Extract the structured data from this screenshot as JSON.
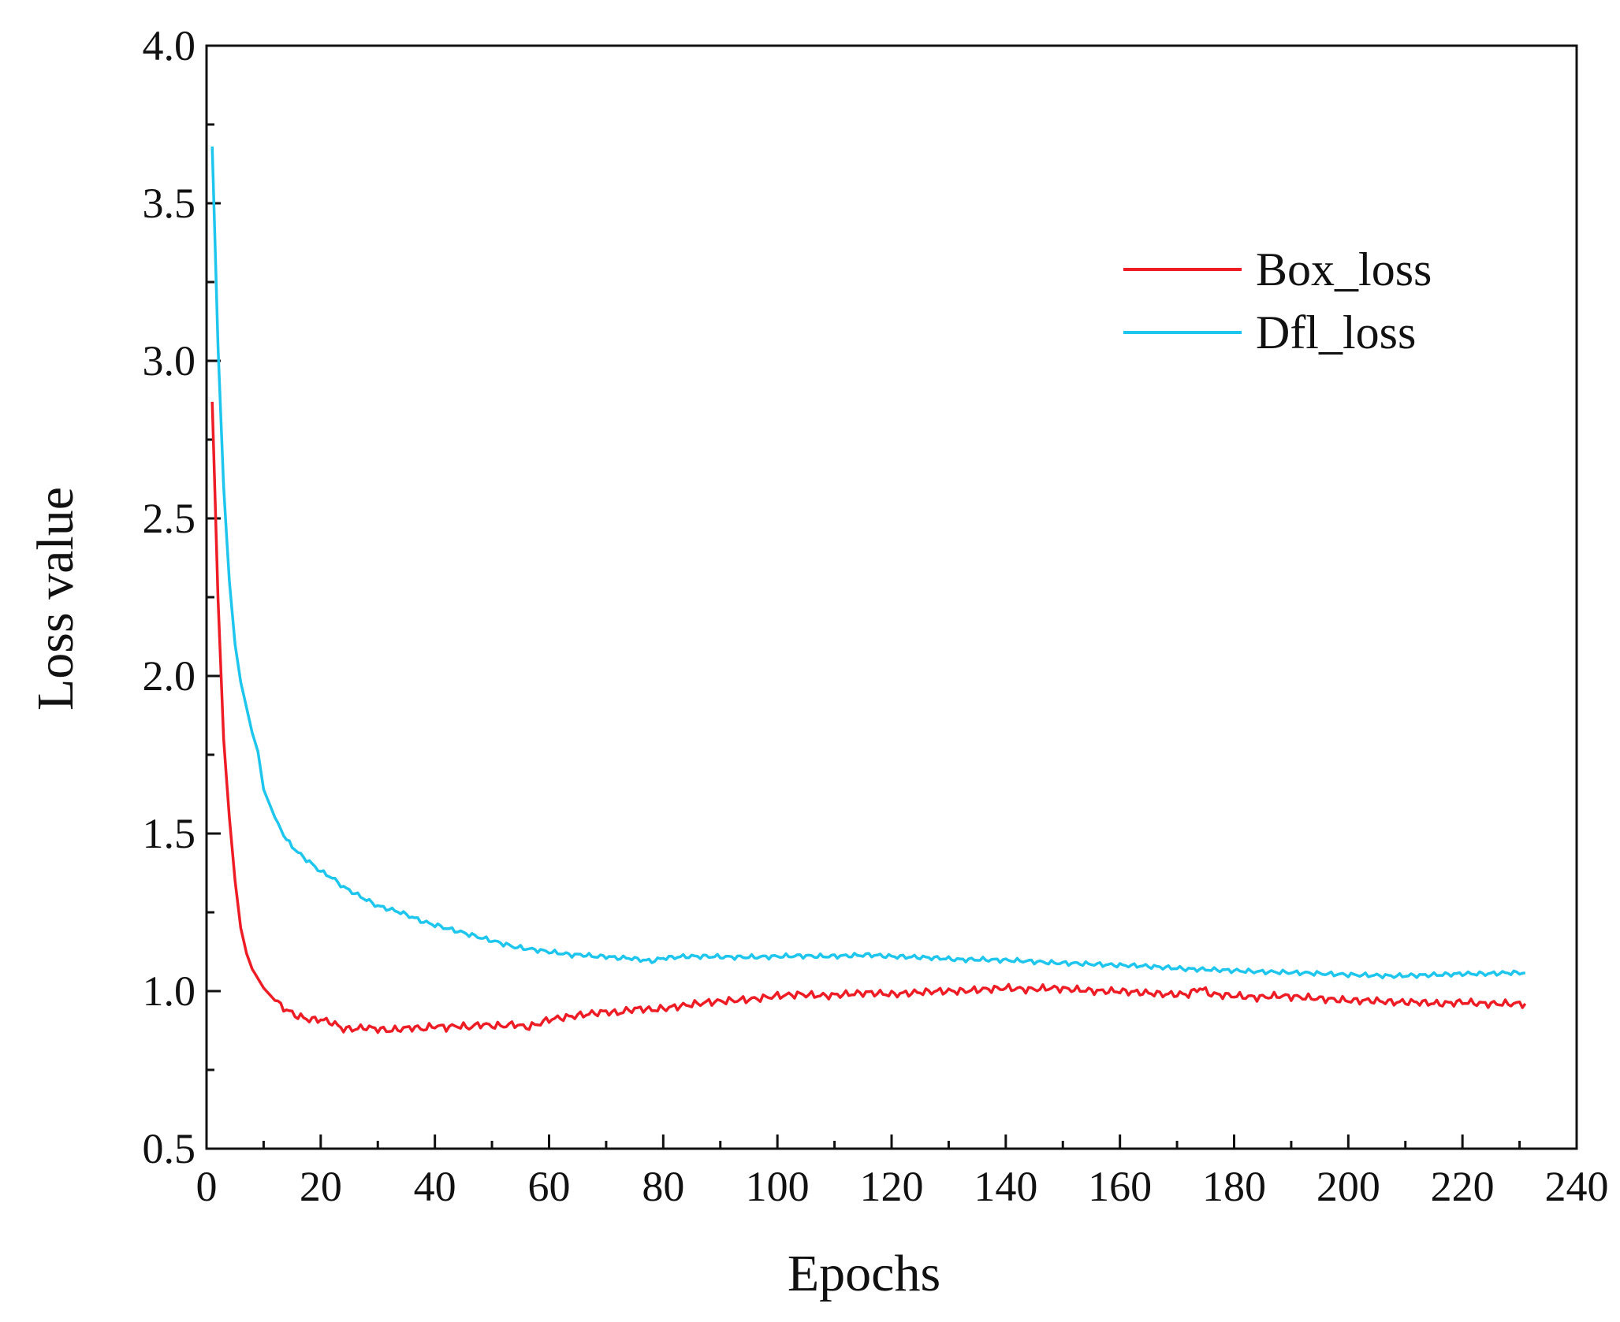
{
  "chart_data": {
    "type": "line",
    "title": "",
    "xlabel": "Epochs",
    "ylabel": "Loss value",
    "xlim": [
      0,
      240
    ],
    "ylim": [
      0.5,
      4.0
    ],
    "xticks": [
      0,
      20,
      40,
      60,
      80,
      100,
      120,
      140,
      160,
      180,
      200,
      220,
      240
    ],
    "xtick_labels": [
      "0",
      "20",
      "40",
      "60",
      "80",
      "100",
      "120",
      "140",
      "160",
      "180",
      "200",
      "220",
      "240"
    ],
    "yticks": [
      0.5,
      1.0,
      1.5,
      2.0,
      2.5,
      3.0,
      3.5,
      4.0
    ],
    "ytick_labels": [
      "0.5",
      "1.0",
      "1.5",
      "2.0",
      "2.5",
      "3.0",
      "3.5",
      "4.0"
    ],
    "grid": false,
    "legend_position": "top-right",
    "series": [
      {
        "name": "Box_loss",
        "color": "#ee1c25",
        "x": [
          1,
          2,
          3,
          4,
          5,
          6,
          7,
          8,
          9,
          10,
          12,
          14,
          16,
          18,
          20,
          22,
          24,
          26,
          28,
          30,
          32,
          34,
          36,
          38,
          40,
          42,
          44,
          46,
          48,
          50,
          52,
          54,
          56,
          58,
          60,
          62,
          64,
          66,
          68,
          70,
          72,
          74,
          76,
          78,
          80,
          84,
          88,
          92,
          96,
          100,
          104,
          108,
          112,
          116,
          120,
          124,
          128,
          132,
          136,
          140,
          144,
          148,
          152,
          156,
          160,
          164,
          168,
          172,
          174,
          176,
          180,
          184,
          188,
          192,
          196,
          200,
          204,
          208,
          212,
          216,
          220,
          224,
          228,
          231
        ],
        "values": [
          2.87,
          2.25,
          1.8,
          1.55,
          1.35,
          1.2,
          1.12,
          1.07,
          1.04,
          1.01,
          0.97,
          0.94,
          0.92,
          0.91,
          0.91,
          0.9,
          0.88,
          0.88,
          0.885,
          0.88,
          0.875,
          0.88,
          0.885,
          0.88,
          0.89,
          0.885,
          0.89,
          0.885,
          0.895,
          0.89,
          0.89,
          0.895,
          0.885,
          0.895,
          0.91,
          0.915,
          0.92,
          0.925,
          0.93,
          0.935,
          0.93,
          0.94,
          0.945,
          0.94,
          0.945,
          0.955,
          0.965,
          0.97,
          0.975,
          0.985,
          0.99,
          0.985,
          0.99,
          0.995,
          0.99,
          0.995,
          1.0,
          1.0,
          1.005,
          1.01,
          1.005,
          1.01,
          1.005,
          1.0,
          1.0,
          0.995,
          0.99,
          0.99,
          1.01,
          0.99,
          0.985,
          0.98,
          0.985,
          0.98,
          0.975,
          0.97,
          0.97,
          0.965,
          0.965,
          0.96,
          0.965,
          0.96,
          0.96,
          0.96
        ]
      },
      {
        "name": "Dfl_loss",
        "color": "#1ec6ee",
        "x": [
          1,
          2,
          3,
          4,
          5,
          6,
          7,
          8,
          9,
          10,
          12,
          14,
          16,
          18,
          20,
          22,
          24,
          26,
          28,
          30,
          34,
          38,
          42,
          46,
          50,
          54,
          58,
          60,
          62,
          64,
          66,
          68,
          70,
          72,
          74,
          76,
          78,
          80,
          84,
          88,
          92,
          96,
          100,
          104,
          108,
          112,
          116,
          120,
          124,
          128,
          132,
          136,
          140,
          144,
          148,
          152,
          156,
          160,
          164,
          168,
          172,
          176,
          180,
          184,
          188,
          192,
          196,
          200,
          204,
          208,
          212,
          216,
          220,
          224,
          228,
          231
        ],
        "values": [
          3.68,
          3.05,
          2.6,
          2.3,
          2.1,
          1.98,
          1.9,
          1.82,
          1.76,
          1.64,
          1.55,
          1.48,
          1.44,
          1.41,
          1.38,
          1.36,
          1.33,
          1.31,
          1.29,
          1.27,
          1.25,
          1.22,
          1.2,
          1.18,
          1.16,
          1.14,
          1.13,
          1.125,
          1.12,
          1.115,
          1.115,
          1.11,
          1.11,
          1.105,
          1.105,
          1.1,
          1.095,
          1.105,
          1.11,
          1.11,
          1.108,
          1.108,
          1.11,
          1.112,
          1.11,
          1.112,
          1.115,
          1.11,
          1.108,
          1.105,
          1.1,
          1.1,
          1.098,
          1.095,
          1.09,
          1.088,
          1.085,
          1.082,
          1.08,
          1.075,
          1.07,
          1.068,
          1.065,
          1.062,
          1.06,
          1.058,
          1.055,
          1.052,
          1.05,
          1.048,
          1.05,
          1.052,
          1.055,
          1.055,
          1.058,
          1.058
        ]
      }
    ]
  }
}
